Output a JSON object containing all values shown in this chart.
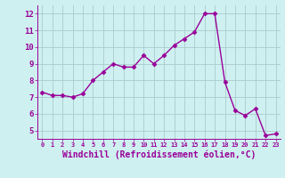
{
  "x": [
    0,
    1,
    2,
    3,
    4,
    5,
    6,
    7,
    8,
    9,
    10,
    11,
    12,
    13,
    14,
    15,
    16,
    17,
    18,
    19,
    20,
    21,
    22,
    23
  ],
  "y": [
    7.3,
    7.1,
    7.1,
    7.0,
    7.2,
    8.0,
    8.5,
    9.0,
    8.8,
    8.8,
    9.5,
    9.0,
    9.5,
    10.1,
    10.5,
    10.9,
    12.0,
    12.0,
    7.9,
    6.2,
    5.9,
    6.3,
    4.7,
    4.8
  ],
  "line_color": "#990099",
  "marker": "D",
  "marker_size": 2.5,
  "linewidth": 1.0,
  "xlabel": "Windchill (Refroidissement éolien,°C)",
  "xlabel_fontsize": 7,
  "xlim": [
    -0.5,
    23.5
  ],
  "ylim": [
    4.5,
    12.5
  ],
  "yticks": [
    5,
    6,
    7,
    8,
    9,
    10,
    11,
    12
  ],
  "xticks": [
    0,
    1,
    2,
    3,
    4,
    5,
    6,
    7,
    8,
    9,
    10,
    11,
    12,
    13,
    14,
    15,
    16,
    17,
    18,
    19,
    20,
    21,
    22,
    23
  ],
  "bg_color": "#cff0f0",
  "grid_color": "#aacccc",
  "line_purple": "#990099",
  "border_color": "#990099"
}
